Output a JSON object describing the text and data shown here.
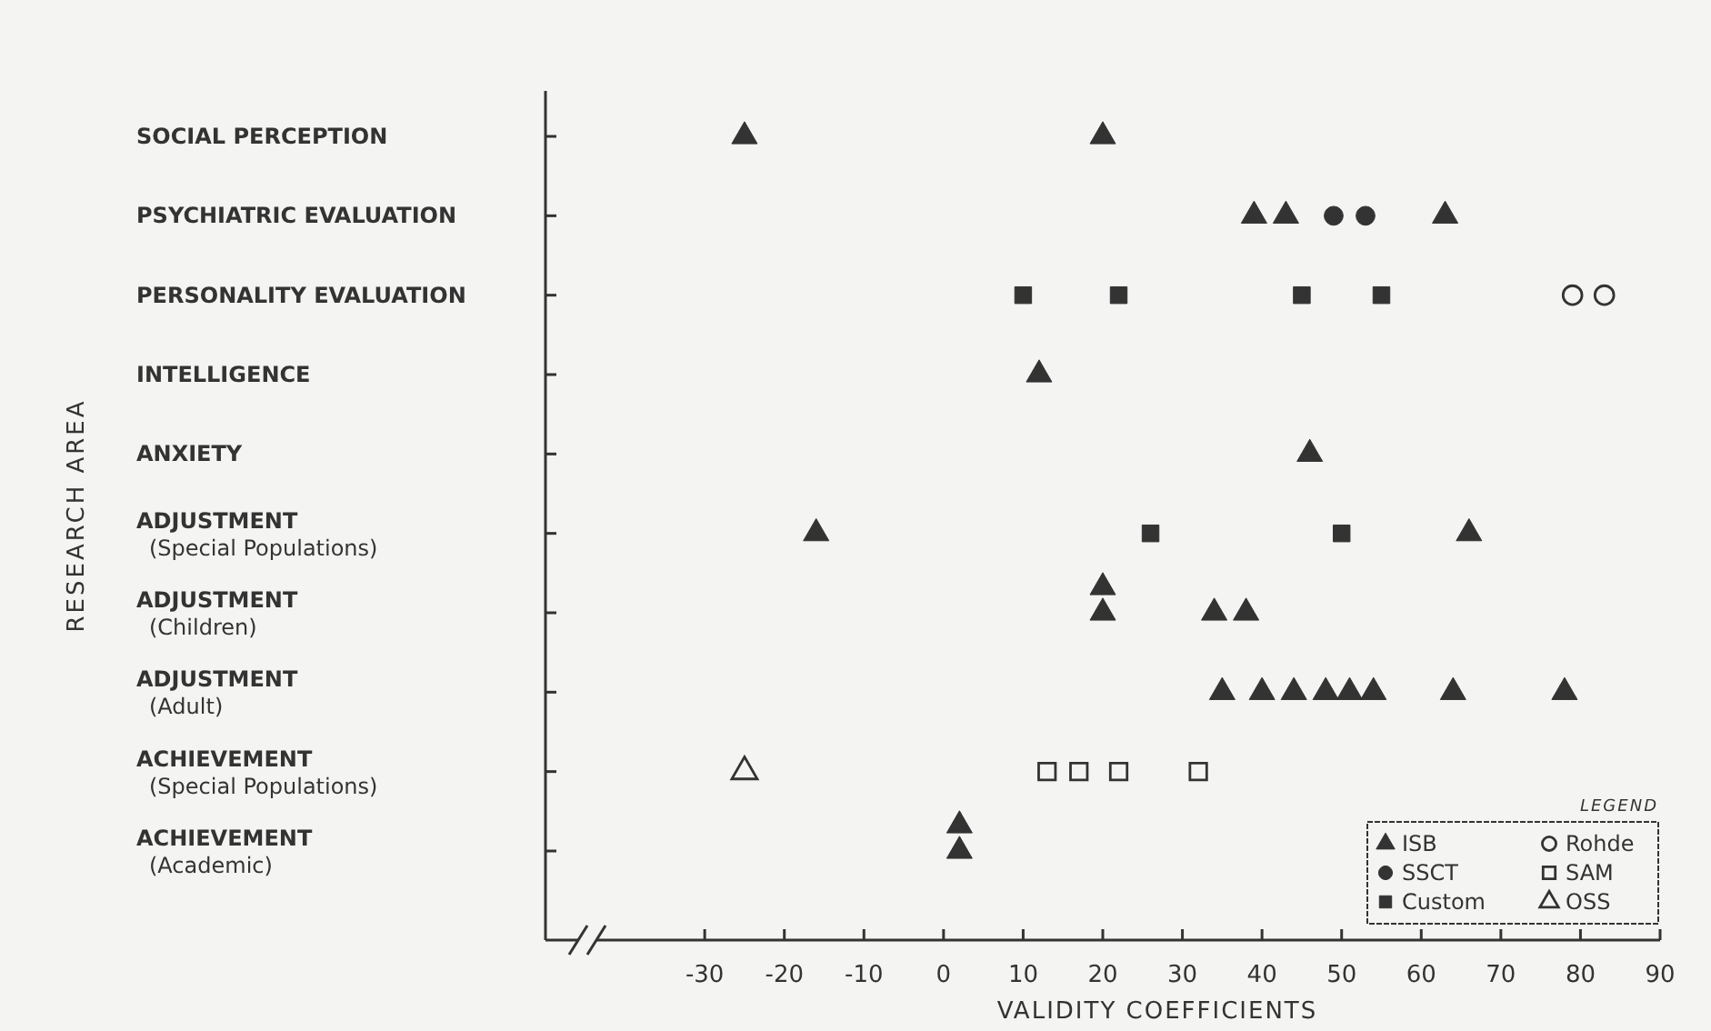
{
  "chart_data": {
    "type": "scatter",
    "orientation": "horizontal",
    "xlabel": "VALIDITY COEFFICIENTS",
    "ylabel": "RESEARCH AREA",
    "legend_title": "LEGEND",
    "legend": "bottom right",
    "categories": [
      "SOCIAL PERCEPTION",
      "PSYCHIATRIC EVALUATION",
      "PERSONALITY EVALUATION",
      "INTELLIGENCE",
      "ANXIETY",
      "ADJUSTMENT\n(Special Populations)",
      "ADJUSTMENT\n(Children)",
      "ADJUSTMENT\n(Adult)",
      "ACHIEVEMENT\n(Special Populations)",
      "ACHIEVEMENT\n(Academic)"
    ],
    "xlim": [
      -50,
      90
    ],
    "xticks": [
      -30,
      -20,
      -10,
      0,
      10,
      20,
      30,
      40,
      50,
      60,
      70,
      80,
      90
    ],
    "series": [
      {
        "name": "ISB",
        "color": "#333333",
        "marker": "triangle",
        "x": [
          "SOCIAL PERCEPTION",
          "SOCIAL PERCEPTION",
          "PSYCHIATRIC EVALUATION",
          "PSYCHIATRIC EVALUATION",
          "PSYCHIATRIC EVALUATION",
          "INTELLIGENCE",
          "ANXIETY",
          "ADJUSTMENT\n(Special Populations)",
          "ADJUSTMENT\n(Special Populations)",
          "ADJUSTMENT\n(Children)",
          "ADJUSTMENT\n(Children)",
          "ADJUSTMENT\n(Children)",
          "ADJUSTMENT\n(Children)",
          "ADJUSTMENT\n(Adult)",
          "ADJUSTMENT\n(Adult)",
          "ADJUSTMENT\n(Adult)",
          "ADJUSTMENT\n(Adult)",
          "ADJUSTMENT\n(Adult)",
          "ADJUSTMENT\n(Adult)",
          "ADJUSTMENT\n(Adult)",
          "ADJUSTMENT\n(Adult)",
          "ACHIEVEMENT\n(Academic)",
          "ACHIEVEMENT\n(Academic)"
        ],
        "values": [
          -25,
          20,
          39,
          43,
          63,
          12,
          46,
          -16,
          66,
          20,
          20,
          34,
          38,
          35,
          40,
          44,
          48,
          51,
          54,
          64,
          78,
          2,
          2
        ]
      },
      {
        "name": "SSCT",
        "color": "#333333",
        "marker": "circle",
        "x": [
          "PSYCHIATRIC EVALUATION",
          "PSYCHIATRIC EVALUATION"
        ],
        "values": [
          49,
          53
        ]
      },
      {
        "name": "Custom",
        "color": "#333333",
        "marker": "square",
        "x": [
          "PERSONALITY EVALUATION",
          "PERSONALITY EVALUATION",
          "PERSONALITY EVALUATION",
          "PERSONALITY EVALUATION",
          "ADJUSTMENT\n(Special Populations)",
          "ADJUSTMENT\n(Special Populations)"
        ],
        "values": [
          10,
          22,
          45,
          55,
          26,
          50
        ]
      },
      {
        "name": "Rohde",
        "color": "#333333",
        "marker": "circle-open",
        "x": [
          "PERSONALITY EVALUATION",
          "PERSONALITY EVALUATION"
        ],
        "values": [
          79,
          83
        ]
      },
      {
        "name": "SAM",
        "color": "#333333",
        "marker": "square-open",
        "x": [
          "ACHIEVEMENT\n(Special Populations)",
          "ACHIEVEMENT\n(Special Populations)",
          "ACHIEVEMENT\n(Special Populations)",
          "ACHIEVEMENT\n(Special Populations)"
        ],
        "values": [
          13,
          17,
          22,
          32
        ]
      },
      {
        "name": "OSS",
        "color": "#333333",
        "marker": "triangle-open",
        "x": [
          "ACHIEVEMENT\n(Special Populations)"
        ],
        "values": [
          -25
        ]
      }
    ]
  }
}
